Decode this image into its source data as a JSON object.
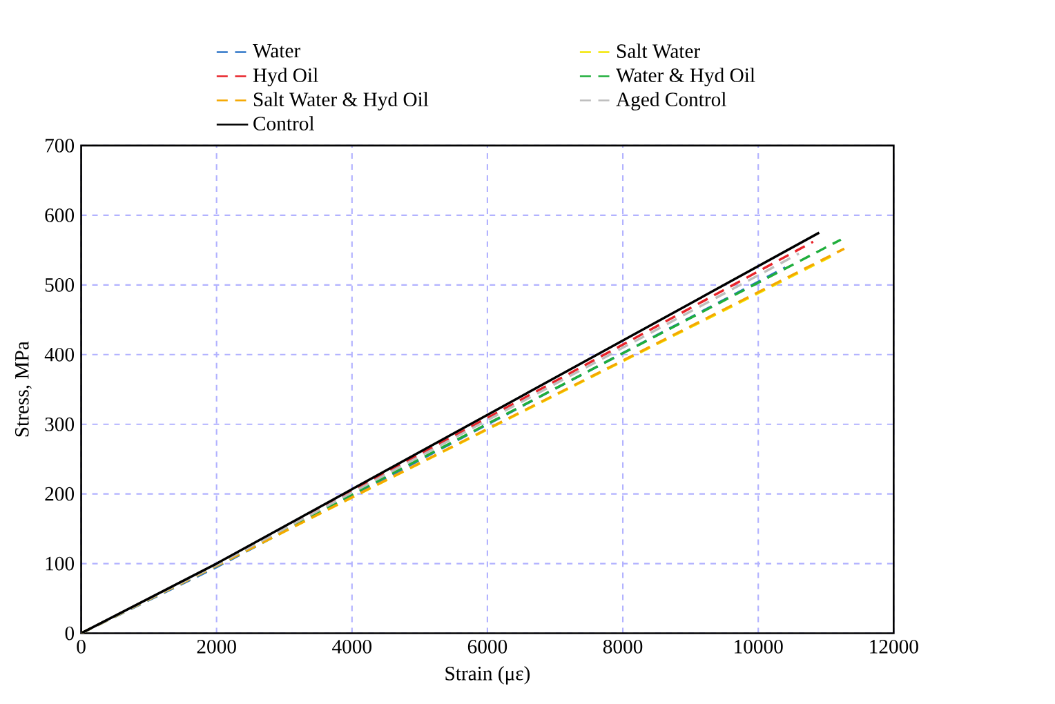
{
  "chart_data": {
    "type": "line",
    "xlabel": "Strain (με)",
    "ylabel": "Stress, MPa",
    "xlim": [
      0,
      12000
    ],
    "ylim": [
      0,
      700
    ],
    "xticks": [
      0,
      2000,
      4000,
      6000,
      8000,
      10000,
      12000
    ],
    "yticks": [
      0,
      100,
      200,
      300,
      400,
      500,
      600,
      700
    ],
    "grid": true,
    "legend": "top",
    "marker": "none",
    "series": [
      {
        "name": "Water",
        "color": "#2e75c8",
        "line_style": "dashed",
        "x": [
          0,
          2000,
          10400
        ],
        "values": [
          0,
          95,
          525
        ]
      },
      {
        "name": "Salt Water",
        "color": "#f2e600",
        "line_style": "dashed",
        "x": [
          0,
          2000,
          11100
        ],
        "values": [
          0,
          97,
          542
        ]
      },
      {
        "name": "Hyd Oil",
        "color": "#e8242a",
        "line_style": "dashed",
        "x": [
          0,
          2000,
          10810
        ],
        "values": [
          0,
          99,
          562
        ]
      },
      {
        "name": "Water & Hyd Oil",
        "color": "#1fae3c",
        "line_style": "dashed",
        "x": [
          0,
          2000,
          11220
        ],
        "values": [
          0,
          98,
          565
        ]
      },
      {
        "name": "Salt Water & Hyd Oil",
        "color": "#f5a800",
        "line_style": "dashed",
        "x": [
          0,
          2000,
          11270
        ],
        "values": [
          0,
          97,
          552
        ]
      },
      {
        "name": "Aged Control",
        "color": "#bdbdbd",
        "line_style": "dashed",
        "x": [
          0,
          2000,
          10600
        ],
        "values": [
          0,
          98,
          545
        ]
      },
      {
        "name": "Control",
        "color": "#000000",
        "line_style": "solid",
        "x": [
          0,
          2000,
          10900
        ],
        "values": [
          0,
          100,
          575
        ]
      }
    ]
  }
}
